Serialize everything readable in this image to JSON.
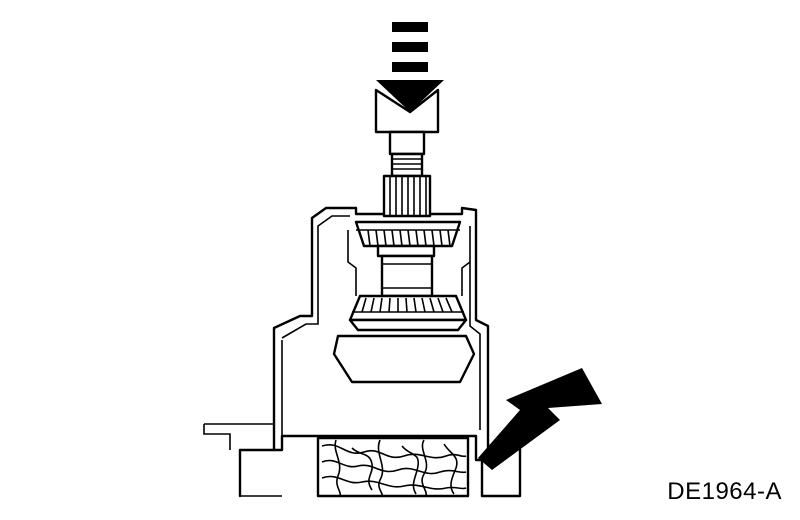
{
  "figure": {
    "id_label": "DE1964-A"
  },
  "diagram": {
    "stroke_color": "#000000",
    "fill_color": "#ffffff",
    "parts": [
      "press-ram-arrow",
      "press-adapter",
      "splined-shaft",
      "upper-tapered-roller-bearing",
      "lower-tapered-roller-bearing",
      "gear-spacer",
      "transmission-case-housing",
      "wood-block-support",
      "wood-block-pointer-arrow"
    ]
  }
}
